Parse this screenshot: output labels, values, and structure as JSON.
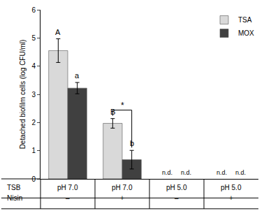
{
  "chart_data": {
    "type": "bar",
    "y_label": "Detached biofilm cells (log CFU/ml)",
    "categories": [
      "pH 7.0",
      "pH 7.0",
      "pH 5.0",
      "pH 5.0"
    ],
    "categories_label": "TSB",
    "second_row": {
      "label": "Nisin",
      "values": [
        "–",
        "+",
        "–",
        "+"
      ]
    },
    "series": [
      {
        "name": "TSA",
        "color": "#d9d9d9",
        "values": [
          4.55,
          1.97,
          null,
          null
        ],
        "errors": [
          0.42,
          0.17,
          null,
          null
        ],
        "letters": [
          "A",
          "B",
          null,
          null
        ]
      },
      {
        "name": "MOX",
        "color": "#404040",
        "values": [
          3.22,
          0.68,
          null,
          null
        ],
        "errors": [
          0.2,
          0.33,
          null,
          null
        ],
        "letters": [
          "a",
          "b",
          null,
          null
        ]
      }
    ],
    "missing_label": "n.d.",
    "significance": {
      "category": 1,
      "label": "*"
    },
    "ylim": [
      0,
      6
    ],
    "yticks": [
      0,
      1,
      2,
      3,
      4,
      5,
      6
    ],
    "legend": "upper right",
    "grid": false,
    "tick_labels": "y"
  }
}
